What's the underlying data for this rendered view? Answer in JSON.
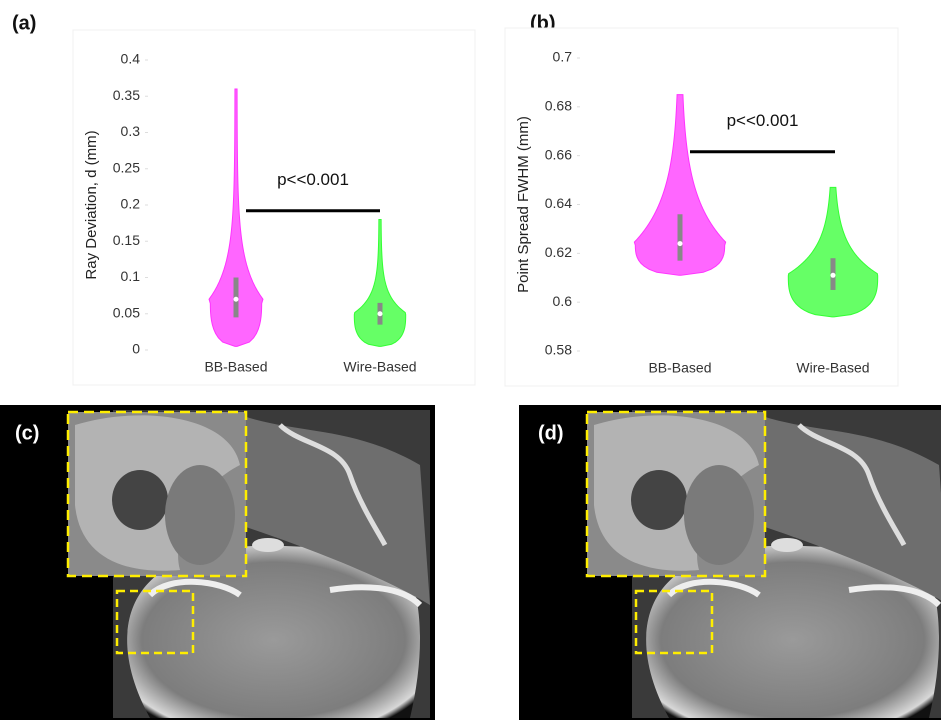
{
  "panel_labels": [
    "(a)",
    "(b)",
    "(c)",
    "(d)"
  ],
  "chart_data": [
    {
      "type": "violin",
      "ylabel": "Ray Deviation, d (mm)",
      "annotation": "p<<0.001",
      "categories": [
        "BB-Based",
        "Wire-Based"
      ],
      "series": [
        {
          "name": "BB-Based",
          "color": "#ff33ff",
          "min": 0.005,
          "q1": 0.045,
          "median": 0.07,
          "q3": 0.1,
          "max": 0.36
        },
        {
          "name": "Wire-Based",
          "color": "#33ff33",
          "min": 0.005,
          "q1": 0.035,
          "median": 0.05,
          "q3": 0.065,
          "max": 0.18
        }
      ],
      "ylim": [
        0,
        0.4
      ],
      "yticks": [
        0,
        0.05,
        0.1,
        0.15,
        0.2,
        0.25,
        0.3,
        0.35,
        0.4
      ]
    },
    {
      "type": "violin",
      "ylabel": "Point Spread FWHM (mm)",
      "annotation": "p<<0.001",
      "categories": [
        "BB-Based",
        "Wire-Based"
      ],
      "series": [
        {
          "name": "BB-Based",
          "color": "#ff33ff",
          "min": 0.611,
          "q1": 0.617,
          "median": 0.624,
          "q3": 0.636,
          "max": 0.685
        },
        {
          "name": "Wire-Based",
          "color": "#33ff33",
          "min": 0.594,
          "q1": 0.605,
          "median": 0.611,
          "q3": 0.618,
          "max": 0.647
        }
      ],
      "ylim": [
        0.58,
        0.7
      ],
      "yticks": [
        0.58,
        0.6,
        0.62,
        0.64,
        0.66,
        0.68,
        0.7
      ]
    }
  ]
}
